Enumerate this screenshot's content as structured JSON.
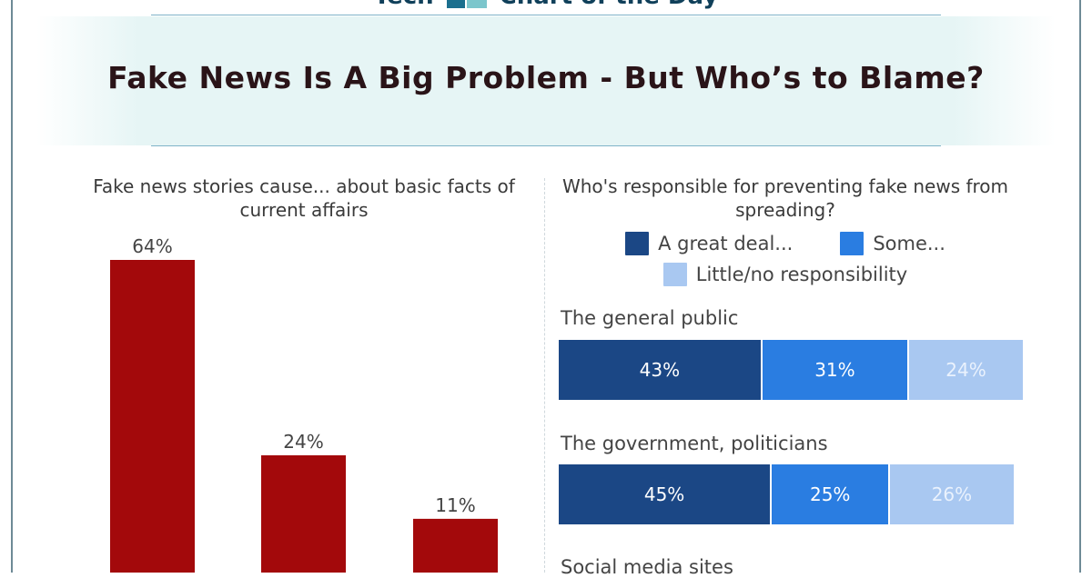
{
  "brand": {
    "left_text": "Tech",
    "right_text": "Chart of the Day"
  },
  "title": "Fake News Is A Big Problem - But Who’s to Blame?",
  "colors": {
    "bar": "#a3090b",
    "great_deal": "#1b4785",
    "some": "#2a7de1",
    "little": "#a9c8f1"
  },
  "chart_data": [
    {
      "type": "bar",
      "title": "Fake news stories cause... about basic facts of current affairs",
      "categories": [
        "",
        "",
        ""
      ],
      "values": [
        64,
        24,
        11
      ],
      "value_labels": [
        "64%",
        "24%",
        "11%"
      ],
      "ylim": [
        0,
        70
      ],
      "grid": false
    },
    {
      "type": "bar",
      "orientation": "horizontal-stacked",
      "title": "Who's responsible for preventing fake news from spreading?",
      "legend": [
        "A great deal...",
        "Some...",
        "Little/no responsibility"
      ],
      "legend_placement": "top",
      "categories": [
        "The general public",
        "The government, politicians",
        "Social media sites"
      ],
      "series": [
        {
          "name": "A great deal...",
          "values": [
            43,
            45,
            null
          ],
          "labels": [
            "43%",
            "45%",
            ""
          ]
        },
        {
          "name": "Some...",
          "values": [
            31,
            25,
            null
          ],
          "labels": [
            "31%",
            "25%",
            ""
          ]
        },
        {
          "name": "Little/no responsibility",
          "values": [
            24,
            26,
            null
          ],
          "labels": [
            "24%",
            "26%",
            ""
          ]
        }
      ]
    }
  ]
}
